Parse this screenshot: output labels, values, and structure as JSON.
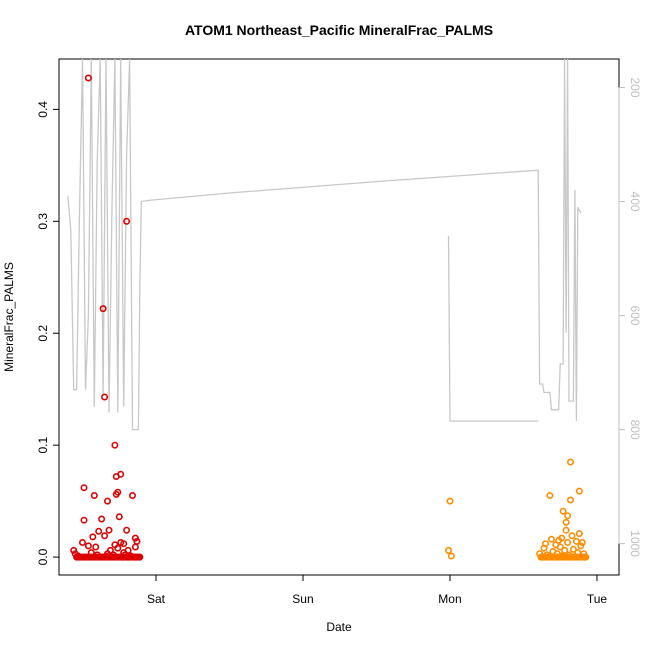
{
  "chart_data": {
    "type": "scatter",
    "title": "ATOM1 Northeast_Pacific MineralFrac_PALMS",
    "xlabel": "Date",
    "ylabel": "MineralFrac_PALMS",
    "x_ticks": [
      "Sat",
      "Sun",
      "Mon",
      "Tue"
    ],
    "x_tick_day": [
      1,
      2,
      3,
      4
    ],
    "xlim_day": [
      0.34,
      4.15
    ],
    "ylim": [
      -0.016,
      0.445
    ],
    "y_ticks": [
      0.0,
      0.1,
      0.2,
      0.3,
      0.4
    ],
    "y_tick_labels": [
      "0.0",
      "0.1",
      "0.2",
      "0.3",
      "0.4"
    ],
    "right_axis": {
      "color": "#bfbfbf",
      "range": [
        1055,
        150
      ],
      "ticks": [
        200,
        400,
        600,
        800,
        1000
      ],
      "tick_labels": [
        "200",
        "400",
        "600",
        "800",
        "1000"
      ]
    },
    "series": [
      {
        "color": "#dd0000",
        "day_offset": 0.0,
        "points": [
          [
            0.44,
            0.006
          ],
          [
            0.45,
            0.003
          ],
          [
            0.47,
            0.001
          ],
          [
            0.5,
            0.013
          ],
          [
            0.51,
            0.062
          ],
          [
            0.51,
            0.033
          ],
          [
            0.52,
            0.0
          ],
          [
            0.54,
            0.428
          ],
          [
            0.54,
            0.01
          ],
          [
            0.56,
            0.004
          ],
          [
            0.57,
            0.018
          ],
          [
            0.58,
            0.055
          ],
          [
            0.59,
            0.009
          ],
          [
            0.6,
            0.002
          ],
          [
            0.61,
            0.023
          ],
          [
            0.62,
            0.0
          ],
          [
            0.63,
            0.034
          ],
          [
            0.64,
            0.222
          ],
          [
            0.65,
            0.019
          ],
          [
            0.65,
            0.143
          ],
          [
            0.66,
            0.001
          ],
          [
            0.67,
            0.05
          ],
          [
            0.67,
            0.003
          ],
          [
            0.68,
            0.024
          ],
          [
            0.69,
            0.006
          ],
          [
            0.7,
            0.0
          ],
          [
            0.71,
            0.002
          ],
          [
            0.72,
            0.011
          ],
          [
            0.72,
            0.1
          ],
          [
            0.73,
            0.072
          ],
          [
            0.73,
            0.056
          ],
          [
            0.74,
            0.058
          ],
          [
            0.74,
            0.008
          ],
          [
            0.75,
            0.036
          ],
          [
            0.76,
            0.074
          ],
          [
            0.76,
            0.013
          ],
          [
            0.77,
            0.0
          ],
          [
            0.78,
            0.012
          ],
          [
            0.78,
            0.004
          ],
          [
            0.79,
            0.002
          ],
          [
            0.8,
            0.3
          ],
          [
            0.8,
            0.024
          ],
          [
            0.81,
            0.006
          ],
          [
            0.82,
            0.0
          ],
          [
            0.83,
            0.001
          ],
          [
            0.84,
            0.055
          ],
          [
            0.86,
            0.009
          ],
          [
            0.86,
            0.017
          ],
          [
            0.87,
            0.014
          ],
          [
            0.89,
            0.0
          ]
        ]
      },
      {
        "color": "#ff8c00",
        "day_offset": 0.0,
        "points": [
          [
            3.0,
            0.05
          ],
          [
            2.99,
            0.006
          ],
          [
            3.01,
            0.001
          ],
          [
            3.61,
            0.003
          ],
          [
            3.62,
            0.0
          ],
          [
            3.64,
            0.008
          ],
          [
            3.65,
            0.012
          ],
          [
            3.66,
            0.002
          ],
          [
            3.68,
            0.055
          ],
          [
            3.69,
            0.016
          ],
          [
            3.7,
            0.005
          ],
          [
            3.71,
            0.0
          ],
          [
            3.72,
            0.011
          ],
          [
            3.73,
            0.003
          ],
          [
            3.74,
            0.015
          ],
          [
            3.75,
            0.009
          ],
          [
            3.76,
            0.001
          ],
          [
            3.77,
            0.041
          ],
          [
            3.78,
            0.006
          ],
          [
            3.79,
            0.024
          ],
          [
            3.79,
            0.031
          ],
          [
            3.8,
            0.037
          ],
          [
            3.8,
            0.013
          ],
          [
            3.81,
            0.002
          ],
          [
            3.82,
            0.085
          ],
          [
            3.82,
            0.051
          ],
          [
            3.83,
            0.019
          ],
          [
            3.84,
            0.007
          ],
          [
            3.85,
            0.0
          ],
          [
            3.86,
            0.014
          ],
          [
            3.87,
            0.004
          ],
          [
            3.88,
            0.059
          ],
          [
            3.88,
            0.021
          ],
          [
            3.89,
            0.01
          ],
          [
            3.9,
            0.013
          ],
          [
            3.91,
            0.003
          ],
          [
            3.92,
            0.0
          ],
          [
            3.76,
            0.017
          ]
        ]
      }
    ],
    "line_series": {
      "color": "#c8c8c8",
      "points": [
        [
          0.4,
          390
        ],
        [
          0.42,
          450
        ],
        [
          0.44,
          730
        ],
        [
          0.46,
          730
        ],
        [
          0.48,
          410
        ],
        [
          0.5,
          150
        ],
        [
          0.52,
          730
        ],
        [
          0.54,
          600
        ],
        [
          0.56,
          150
        ],
        [
          0.58,
          760
        ],
        [
          0.6,
          330
        ],
        [
          0.62,
          150
        ],
        [
          0.64,
          740
        ],
        [
          0.66,
          150
        ],
        [
          0.68,
          770
        ],
        [
          0.7,
          420
        ],
        [
          0.72,
          150
        ],
        [
          0.74,
          770
        ],
        [
          0.76,
          150
        ],
        [
          0.78,
          760
        ],
        [
          0.8,
          320
        ],
        [
          0.82,
          150
        ],
        [
          0.84,
          800
        ],
        [
          0.86,
          800
        ],
        [
          0.88,
          800
        ],
        [
          0.89,
          555
        ],
        [
          0.9,
          400
        ],
        [
          0.95,
          398
        ],
        [
          1.5,
          385
        ],
        [
          2.5,
          365
        ],
        [
          3.6,
          345
        ],
        [
          3.61,
          720
        ],
        [
          3.63,
          720
        ],
        [
          3.64,
          735
        ],
        [
          3.68,
          735
        ],
        [
          3.69,
          765
        ],
        [
          3.74,
          765
        ],
        [
          3.75,
          685
        ],
        [
          3.77,
          685
        ],
        [
          3.78,
          150
        ],
        [
          3.79,
          630
        ],
        [
          3.8,
          150
        ],
        [
          3.81,
          750
        ],
        [
          3.84,
          750
        ],
        [
          3.85,
          380
        ],
        [
          3.86,
          785
        ],
        [
          3.87,
          410
        ],
        [
          3.89,
          420
        ]
      ],
      "gap_after_day": 0.9,
      "second_segment": [
        [
          2.99,
          460
        ],
        [
          3.0,
          785
        ],
        [
          3.6,
          785
        ]
      ]
    }
  }
}
